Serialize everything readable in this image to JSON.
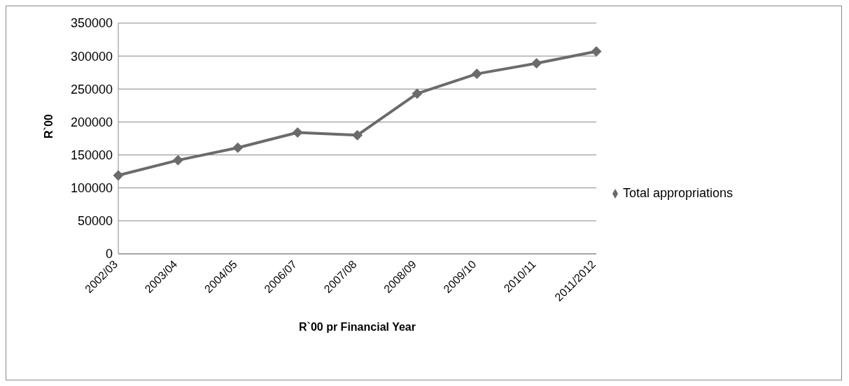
{
  "chart_data": {
    "type": "line",
    "xlabel": "R`00 pr Financial Year",
    "ylabel": "R`00",
    "categories": [
      "2002/03",
      "2003/04",
      "2004/05",
      "2006/07",
      "2007/08",
      "2008/09",
      "2009/10",
      "2010/11",
      "2011/2012"
    ],
    "series": [
      {
        "name": "Total appropriations",
        "color": "#6b6b6b",
        "values": [
          119000,
          142000,
          161000,
          184000,
          180000,
          243000,
          273000,
          289000,
          307000
        ]
      }
    ],
    "ylim": [
      0,
      350000
    ],
    "yticks": [
      0,
      50000,
      100000,
      150000,
      200000,
      250000,
      300000,
      350000
    ],
    "grid": "y",
    "legend": "right",
    "marker": "diamond",
    "line_style": "solid"
  }
}
